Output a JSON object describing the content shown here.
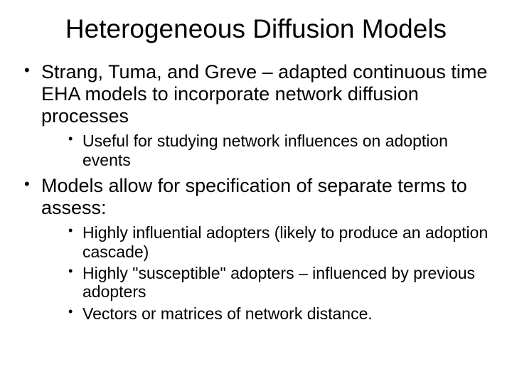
{
  "title": "Heterogeneous Diffusion Models",
  "bullets": {
    "item0": {
      "text": "Strang, Tuma, and Greve – adapted continuous time EHA models to incorporate network diffusion processes",
      "sub0": "Useful for studying network influences on adoption events"
    },
    "item1": {
      "text": "Models allow for specification of separate terms to assess:",
      "sub0": "Highly influential adopters (likely to produce an adoption cascade)",
      "sub1": "Highly \"susceptible\" adopters – influenced by previous adopters",
      "sub2": "Vectors or matrices of network distance."
    }
  },
  "styling": {
    "background_color": "#ffffff",
    "text_color": "#000000",
    "title_fontsize": 37,
    "level1_fontsize": 27,
    "level2_fontsize": 23,
    "font_family": "Arial"
  }
}
